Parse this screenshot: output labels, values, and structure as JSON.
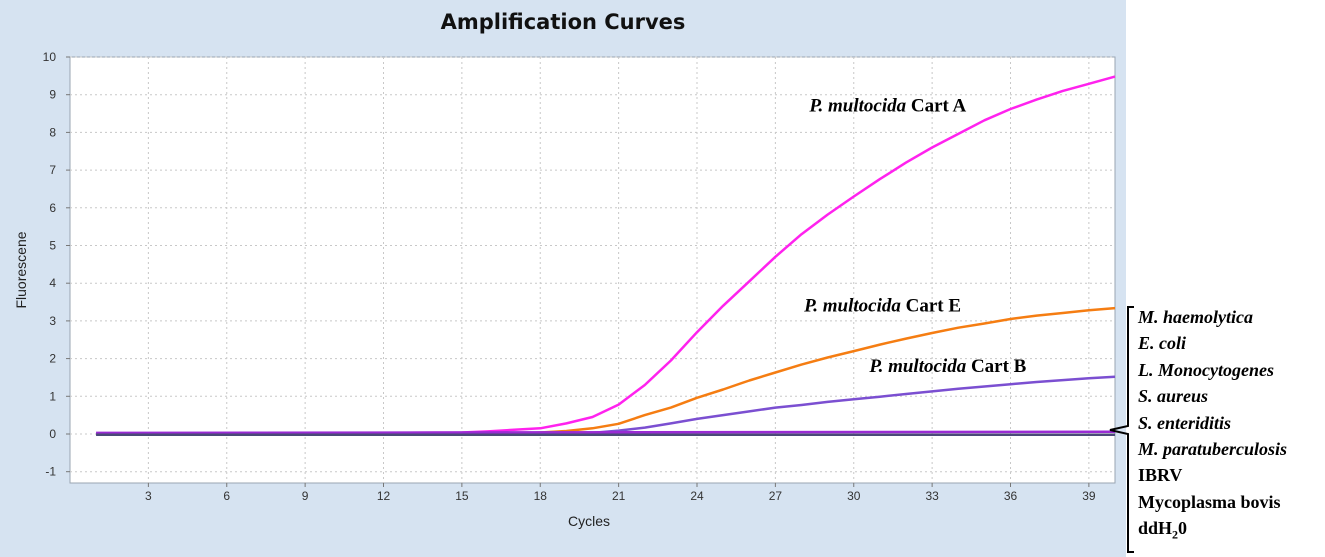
{
  "chart_data": {
    "type": "line",
    "title": "Amplification Curves",
    "xlabel": "Cycles",
    "ylabel": "Fluorescene",
    "xlim": [
      0,
      40
    ],
    "ylim": [
      -1.3,
      10
    ],
    "xticks": [
      3,
      6,
      9,
      12,
      15,
      18,
      21,
      24,
      27,
      30,
      33,
      36,
      39
    ],
    "yticks": [
      -1,
      0,
      1,
      2,
      3,
      4,
      5,
      6,
      7,
      8,
      9,
      10
    ],
    "grid": true,
    "series": [
      {
        "name": "P. multocida Cart A",
        "color": "#ff22ee",
        "x": [
          1,
          10,
          15,
          16,
          17,
          18,
          19,
          20,
          21,
          22,
          23,
          24,
          25,
          26,
          27,
          28,
          29,
          30,
          31,
          32,
          33,
          34,
          35,
          36,
          37,
          38,
          39,
          40
        ],
        "y": [
          0.0,
          0.02,
          0.04,
          0.07,
          0.11,
          0.15,
          0.28,
          0.45,
          0.78,
          1.3,
          1.95,
          2.7,
          3.4,
          4.05,
          4.7,
          5.3,
          5.82,
          6.3,
          6.76,
          7.2,
          7.6,
          7.96,
          8.32,
          8.62,
          8.87,
          9.1,
          9.29,
          9.48
        ]
      },
      {
        "name": "P. multocida Cart E",
        "color": "#f57d12",
        "x": [
          1,
          17,
          18,
          19,
          20,
          21,
          22,
          23,
          24,
          25,
          26,
          27,
          28,
          29,
          30,
          31,
          32,
          33,
          34,
          35,
          36,
          37,
          38,
          39,
          40
        ],
        "y": [
          0.0,
          0.0,
          0.04,
          0.08,
          0.15,
          0.27,
          0.5,
          0.7,
          0.96,
          1.18,
          1.42,
          1.63,
          1.84,
          2.03,
          2.2,
          2.37,
          2.53,
          2.68,
          2.82,
          2.93,
          3.05,
          3.14,
          3.21,
          3.28,
          3.34
        ]
      },
      {
        "name": "P. multocida Cart B",
        "color": "#7b4fd1",
        "x": [
          1,
          19,
          20,
          21,
          22,
          23,
          24,
          25,
          26,
          27,
          28,
          29,
          30,
          31,
          32,
          33,
          34,
          35,
          36,
          37,
          38,
          39,
          40
        ],
        "y": [
          0.0,
          0.0,
          0.03,
          0.09,
          0.17,
          0.28,
          0.4,
          0.5,
          0.6,
          0.7,
          0.77,
          0.85,
          0.92,
          0.99,
          1.06,
          1.13,
          1.2,
          1.26,
          1.32,
          1.38,
          1.43,
          1.48,
          1.52
        ]
      },
      {
        "name": "Negative controls",
        "color": "#9a2bd4",
        "x": [
          1,
          40
        ],
        "y": [
          0.03,
          0.06
        ]
      },
      {
        "name": "Baseline",
        "color": "#4a4a78",
        "x": [
          1,
          40
        ],
        "y": [
          -0.02,
          -0.02
        ]
      }
    ],
    "annotations": [
      {
        "italic": "P. multocida",
        "plain": " Cart A",
        "x": 28.3,
        "y": 8.55
      },
      {
        "italic": "P. multocida",
        "plain": " Cart E",
        "x": 28.1,
        "y": 3.25
      },
      {
        "italic": "P. multocida",
        "plain": " Cart B",
        "x": 30.6,
        "y": 1.65
      }
    ]
  },
  "negative_controls": [
    {
      "label": "M. haemolytica",
      "italic": true
    },
    {
      "label": "E. coli",
      "italic": true
    },
    {
      "label": "L. Monocytogenes",
      "italic": true
    },
    {
      "label": "S. aureus",
      "italic": true
    },
    {
      "label": "S. enteriditis",
      "italic": true
    },
    {
      "label": "M. paratuberculosis",
      "italic": true
    },
    {
      "label": "IBRV",
      "italic": false
    },
    {
      "label": "Mycoplasma bovis",
      "italic": false
    },
    {
      "label": "ddH",
      "sub": "2",
      "suffix": "0",
      "italic": false
    }
  ]
}
